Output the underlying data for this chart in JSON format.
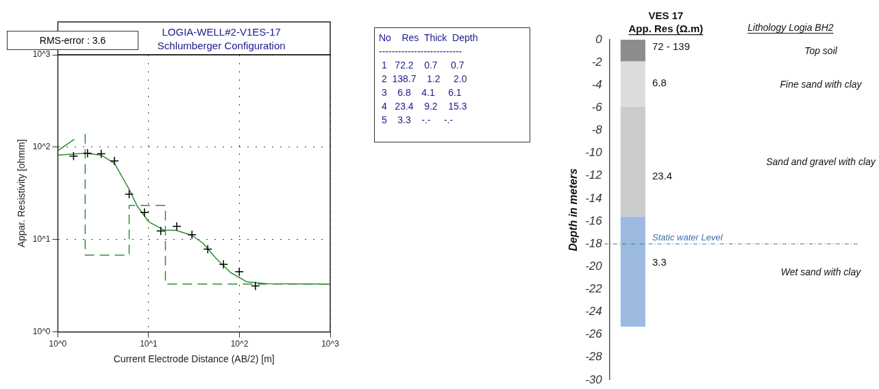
{
  "chart_data": [
    {
      "type": "line",
      "title": "LOGIA-WELL#2-V1ES-17",
      "subtitle": "Schlumberger Configuration",
      "xlabel": "Current Electrode Distance (AB/2) [m]",
      "ylabel": "Appar. Resistivity [ohmm]",
      "log": "xy",
      "xlim": [
        1,
        1000
      ],
      "ylim": [
        1,
        1000
      ],
      "xticks": [
        {
          "value": 1,
          "label": "10^0"
        },
        {
          "value": 10,
          "label": "10^1"
        },
        {
          "value": 100,
          "label": "10^2"
        },
        {
          "value": 1000,
          "label": "10^3"
        }
      ],
      "yticks": [
        {
          "value": 1,
          "label": "10^0"
        },
        {
          "value": 10,
          "label": "10^1"
        },
        {
          "value": 100,
          "label": "10^2"
        },
        {
          "value": 1000,
          "label": "10^3"
        }
      ],
      "grid": true,
      "legend": false,
      "annotations": [
        "RMS-error :  3.6",
        "No    Res  Thick  Depth",
        "--------------------------",
        " 1   72.2    0.7     0.7",
        " 2  138.7    1.2     2.0",
        " 3    6.8    4.1     6.1",
        " 4   23.4    9.2    15.3",
        " 5    3.3    -.-     -.-"
      ],
      "series": [
        {
          "type": "scatter",
          "marker": "cross",
          "color": "#000000",
          "x": [
            1.49,
            2.12,
            3.0,
            4.2,
            6.1,
            9.0,
            13.6,
            20.4,
            30,
            44.8,
            66.8,
            99.6,
            150
          ],
          "values": [
            80,
            86,
            85,
            71,
            31,
            19.7,
            12.4,
            13.9,
            11.3,
            7.9,
            5.4,
            4.5,
            3.15
          ]
        },
        {
          "type": "line",
          "marker": "none",
          "line_style": "solid",
          "color": "#2e8b2e",
          "x": [
            1,
            2,
            3,
            4.2,
            6.1,
            7.5,
            10,
            15,
            20,
            30,
            40,
            55,
            80,
            120,
            200,
            1000
          ],
          "values": [
            82,
            86,
            82,
            67,
            35,
            23,
            15.6,
            12.6,
            12.6,
            11.1,
            9.1,
            6.3,
            4.4,
            3.5,
            3.33,
            3.3
          ]
        },
        {
          "type": "line",
          "marker": "none",
          "line_style": "solid",
          "color": "#2e8b2e",
          "x": [
            1,
            1.52
          ],
          "values": [
            92,
            122
          ]
        },
        {
          "type": "line",
          "marker": "none",
          "line_style": "dashed",
          "color": "#2e8b2e",
          "x": [
            2,
            2,
            6.1,
            6.1,
            15.3,
            15.3,
            1000
          ],
          "values": [
            138.7,
            6.8,
            6.8,
            23.4,
            23.4,
            3.3,
            3.3
          ]
        }
      ]
    },
    {
      "type": "bar",
      "stacked": true,
      "title": "VES 17",
      "subtitle": "App. Res (Ω.m)",
      "ylabel": "Depth in meters",
      "categories": [
        null
      ],
      "ylim": [
        -30,
        0
      ],
      "yticks": [
        0,
        -2,
        -4,
        -6,
        -8,
        -10,
        -12,
        -14,
        -16,
        -18,
        -20,
        -22,
        -24,
        -26,
        -28,
        -30
      ],
      "grid": false,
      "legend": false,
      "tick_labels": "y",
      "series": [
        {
          "name": "Top soil",
          "color": "#8c8c8c",
          "values": [
            -1.9
          ]
        },
        {
          "name": "Fine sand with clay",
          "color": "#dcdcdc",
          "values": [
            -4.0
          ]
        },
        {
          "name": "Sand and gravel with clay",
          "color": "#cbcbcb",
          "values": [
            -9.7
          ]
        },
        {
          "name": "Wet sand with clay",
          "color": "#9dbbe0",
          "values": [
            -9.7
          ]
        }
      ],
      "ref_lines": [
        {
          "axis": "y",
          "value": -18,
          "label": "Static water Level",
          "color": "#3f6fb0",
          "line_style": "dashed"
        }
      ],
      "annotations": [
        "Lithology Logia BH2",
        "72 - 139",
        "6.8",
        "23.4",
        "3.3"
      ]
    }
  ]
}
